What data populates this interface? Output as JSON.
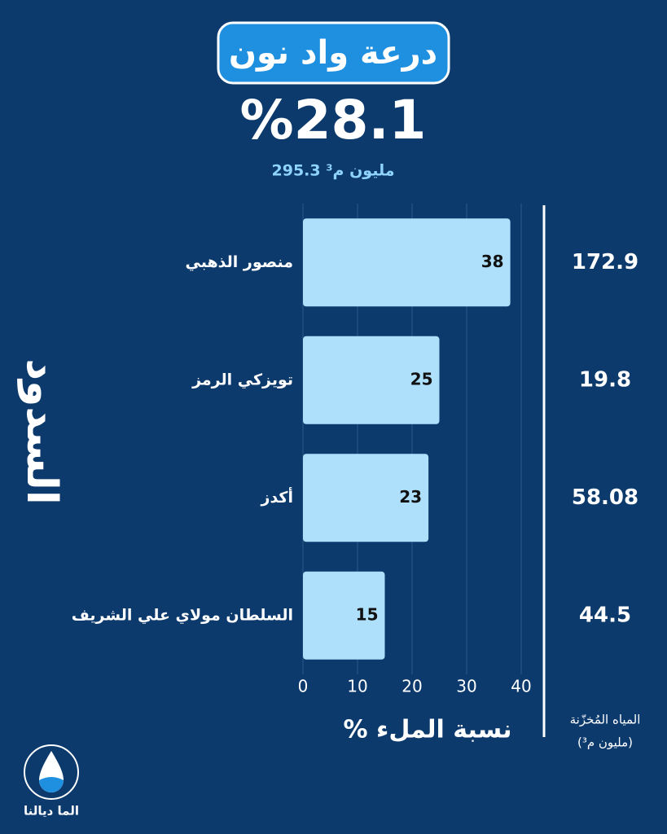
{
  "header": {
    "title": "درعة واد نون",
    "rate": "%28.1",
    "volume": "295.3 مليون م³"
  },
  "chart_data": {
    "type": "bar",
    "orientation": "horizontal",
    "categories": [
      "منصور الذهبي",
      "تويزكي الرمز",
      "أكدز",
      "السلطان مولاي علي الشريف"
    ],
    "values": [
      38,
      25,
      23,
      15
    ],
    "color": "#aee0fb",
    "xlim": [
      0,
      40
    ],
    "xticks": [
      0,
      10,
      20,
      30,
      40
    ],
    "grid": true,
    "xlabel": "نسبة الملء %",
    "ylabel": "السدود",
    "stored_water": {
      "title": "المياه المُخزّنة",
      "unit": "(مليون م³)",
      "values": [
        172.9,
        19.8,
        58.08,
        44.5
      ]
    }
  },
  "logo": "الما ديالنا"
}
